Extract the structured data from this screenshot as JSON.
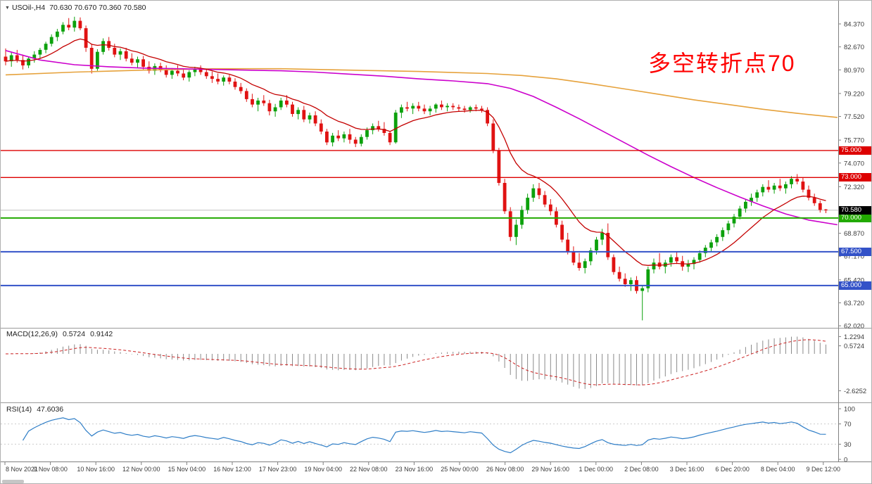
{
  "header": {
    "dropdown_icon": "▼",
    "title": "USOil-,H4",
    "ohlc": "70.630 70.670 70.360 70.580"
  },
  "annotation": {
    "text": "多空转折点70",
    "color": "#ff0000"
  },
  "panels": {
    "macd": {
      "label": "MACD(12,26,9)",
      "value_main": "0.5724",
      "value_signal": "0.9142",
      "axis": [
        "1.2294",
        "0.5724",
        "-2.6252"
      ]
    },
    "rsi": {
      "label": "RSI(14)",
      "value": "47.6036",
      "axis": [
        "100",
        "70",
        "30",
        "0"
      ]
    }
  },
  "chart_data": {
    "type": "candlestick",
    "symbol": "USOil-",
    "timeframe": "H4",
    "current": {
      "open": "70.630",
      "high": "70.670",
      "low": "70.360",
      "close": "70.580"
    },
    "colors": {
      "up": "#0ca10c",
      "down": "#e01212",
      "ma_fast": "#c40000",
      "ma_medium": "#cc00cc",
      "ma_slow": "#e6a23c",
      "rsi": "#2f7ec7",
      "macd_hist": "#8a8a8a",
      "macd_signal": "#cc2222"
    },
    "y_axis_labels": [
      "84.370",
      "82.670",
      "80.970",
      "79.220",
      "77.520",
      "75.770",
      "74.070",
      "72.320",
      "68.870",
      "67.170",
      "65.420",
      "63.720",
      "62.020"
    ],
    "levels": [
      {
        "price": 75.0,
        "label": "75.000",
        "color": "#dd0000",
        "width": 1.4
      },
      {
        "price": 73.0,
        "label": "73.000",
        "color": "#dd0000",
        "width": 1.4
      },
      {
        "price": 70.0,
        "label": "70.000",
        "color": "#22aa00",
        "width": 2
      },
      {
        "price": 67.5,
        "label": "67.500",
        "color": "#3352c8",
        "width": 2
      },
      {
        "price": 65.0,
        "label": "65.000",
        "color": "#3352c8",
        "width": 2
      }
    ],
    "current_price": {
      "price": 70.58,
      "label": "70.580",
      "badge_color": "#000000"
    },
    "ma_fast": {
      "period": 13
    },
    "ma_medium": {
      "points": [
        [
          0,
          82.4
        ],
        [
          6,
          81.7
        ],
        [
          12,
          81.35
        ],
        [
          18,
          81.2
        ],
        [
          24,
          81.1
        ],
        [
          30,
          81.05
        ],
        [
          36,
          81.0
        ],
        [
          42,
          80.95
        ],
        [
          48,
          80.9
        ],
        [
          54,
          80.8
        ],
        [
          60,
          80.65
        ],
        [
          66,
          80.5
        ],
        [
          72,
          80.3
        ],
        [
          78,
          80.15
        ],
        [
          84,
          79.95
        ],
        [
          88,
          79.6
        ],
        [
          92,
          79.0
        ],
        [
          96,
          78.2
        ],
        [
          100,
          77.35
        ],
        [
          104,
          76.45
        ],
        [
          108,
          75.55
        ],
        [
          112,
          74.65
        ],
        [
          116,
          73.8
        ],
        [
          120,
          73.0
        ],
        [
          124,
          72.25
        ],
        [
          128,
          71.55
        ],
        [
          132,
          70.9
        ],
        [
          136,
          70.3
        ],
        [
          140,
          69.85
        ],
        [
          145,
          69.5
        ]
      ]
    },
    "ma_slow": {
      "points": [
        [
          0,
          80.6
        ],
        [
          12,
          80.8
        ],
        [
          24,
          80.95
        ],
        [
          36,
          81.05
        ],
        [
          48,
          81.05
        ],
        [
          60,
          80.95
        ],
        [
          72,
          80.85
        ],
        [
          84,
          80.7
        ],
        [
          90,
          80.55
        ],
        [
          96,
          80.3
        ],
        [
          102,
          79.95
        ],
        [
          108,
          79.55
        ],
        [
          114,
          79.15
        ],
        [
          120,
          78.75
        ],
        [
          126,
          78.4
        ],
        [
          132,
          78.05
        ],
        [
          138,
          77.75
        ],
        [
          145,
          77.45
        ]
      ]
    },
    "macd": {
      "fast": 12,
      "slow": 26,
      "signal": 9
    },
    "rsi": {
      "period": 14,
      "levels": [
        70,
        30
      ]
    },
    "candles": [
      [
        81.95,
        82.55,
        81.3,
        81.6
      ],
      [
        81.6,
        82.25,
        81.2,
        82.05
      ],
      [
        82.05,
        82.45,
        81.5,
        81.7
      ],
      [
        81.7,
        82.1,
        81.0,
        81.3
      ],
      [
        81.3,
        81.95,
        81.1,
        81.8
      ],
      [
        81.8,
        82.35,
        81.5,
        82.1
      ],
      [
        82.1,
        82.6,
        81.8,
        82.45
      ],
      [
        82.45,
        83.05,
        82.2,
        82.9
      ],
      [
        82.9,
        83.6,
        82.7,
        83.4
      ],
      [
        83.4,
        84.0,
        83.1,
        83.8
      ],
      [
        83.8,
        84.5,
        83.6,
        84.3
      ],
      [
        84.3,
        84.8,
        83.9,
        84.1
      ],
      [
        84.1,
        84.9,
        83.8,
        84.6
      ],
      [
        84.6,
        84.85,
        83.9,
        84.05
      ],
      [
        84.05,
        84.25,
        82.3,
        82.6
      ],
      [
        82.6,
        82.9,
        80.7,
        81.05
      ],
      [
        81.05,
        82.5,
        80.9,
        82.3
      ],
      [
        82.3,
        83.3,
        82.1,
        83.1
      ],
      [
        83.1,
        83.4,
        82.4,
        82.6
      ],
      [
        82.6,
        82.9,
        81.9,
        82.1
      ],
      [
        82.1,
        82.55,
        81.7,
        82.35
      ],
      [
        82.35,
        82.6,
        81.6,
        81.8
      ],
      [
        81.8,
        82.2,
        81.3,
        81.5
      ],
      [
        81.5,
        81.95,
        81.1,
        81.75
      ],
      [
        81.75,
        82.0,
        81.0,
        81.2
      ],
      [
        81.2,
        81.6,
        80.7,
        80.9
      ],
      [
        80.9,
        81.45,
        80.6,
        81.25
      ],
      [
        81.25,
        81.5,
        80.8,
        81.0
      ],
      [
        81.0,
        81.3,
        80.4,
        80.6
      ],
      [
        80.6,
        81.1,
        80.3,
        80.9
      ],
      [
        80.9,
        81.3,
        80.5,
        80.7
      ],
      [
        80.7,
        81.0,
        80.2,
        80.4
      ],
      [
        80.4,
        80.95,
        80.1,
        80.8
      ],
      [
        80.8,
        81.2,
        80.5,
        81.0
      ],
      [
        81.0,
        81.3,
        80.6,
        80.8
      ],
      [
        80.8,
        81.0,
        80.3,
        80.5
      ],
      [
        80.5,
        80.85,
        80.0,
        80.3
      ],
      [
        80.3,
        80.7,
        79.9,
        80.1
      ],
      [
        80.1,
        80.55,
        79.8,
        80.4
      ],
      [
        80.4,
        80.6,
        79.9,
        80.1
      ],
      [
        80.1,
        80.35,
        79.5,
        79.7
      ],
      [
        79.7,
        80.0,
        79.2,
        79.4
      ],
      [
        79.4,
        79.6,
        78.6,
        78.8
      ],
      [
        78.8,
        79.2,
        78.2,
        78.4
      ],
      [
        78.4,
        78.9,
        77.9,
        78.7
      ],
      [
        78.7,
        79.1,
        78.3,
        78.5
      ],
      [
        78.5,
        78.75,
        77.6,
        77.9
      ],
      [
        77.9,
        78.45,
        77.5,
        78.2
      ],
      [
        78.2,
        78.9,
        78.0,
        78.7
      ],
      [
        78.7,
        79.1,
        78.2,
        78.4
      ],
      [
        78.4,
        78.6,
        77.5,
        77.7
      ],
      [
        77.7,
        78.2,
        77.3,
        78.0
      ],
      [
        78.0,
        78.3,
        77.1,
        77.3
      ],
      [
        77.3,
        77.8,
        77.0,
        77.6
      ],
      [
        77.6,
        77.9,
        76.8,
        77.0
      ],
      [
        77.0,
        77.3,
        76.2,
        76.4
      ],
      [
        76.4,
        76.6,
        75.4,
        75.6
      ],
      [
        75.6,
        76.3,
        75.3,
        76.1
      ],
      [
        76.1,
        76.5,
        75.7,
        75.9
      ],
      [
        75.9,
        76.4,
        75.6,
        76.2
      ],
      [
        76.2,
        76.6,
        75.5,
        75.8
      ],
      [
        75.8,
        76.0,
        75.25,
        75.5
      ],
      [
        75.5,
        76.2,
        75.3,
        76.0
      ],
      [
        76.0,
        76.7,
        75.8,
        76.5
      ],
      [
        76.5,
        77.0,
        76.2,
        76.8
      ],
      [
        76.8,
        77.2,
        76.4,
        76.6
      ],
      [
        76.6,
        77.1,
        76.1,
        76.3
      ],
      [
        76.3,
        76.45,
        75.4,
        75.6
      ],
      [
        75.6,
        78.0,
        75.5,
        77.8
      ],
      [
        77.8,
        78.4,
        77.4,
        78.2
      ],
      [
        78.2,
        78.6,
        77.9,
        78.1
      ],
      [
        78.1,
        78.5,
        77.7,
        78.3
      ],
      [
        78.3,
        78.6,
        77.9,
        78.1
      ],
      [
        78.1,
        78.4,
        77.7,
        77.9
      ],
      [
        77.9,
        78.3,
        77.6,
        78.1
      ],
      [
        78.1,
        78.5,
        77.8,
        78.4
      ],
      [
        78.4,
        78.7,
        78.0,
        78.2
      ],
      [
        78.2,
        78.5,
        77.9,
        78.3
      ],
      [
        78.3,
        78.5,
        78.0,
        78.2
      ],
      [
        78.2,
        78.4,
        77.9,
        78.1
      ],
      [
        78.1,
        78.3,
        77.8,
        78.0
      ],
      [
        78.0,
        78.3,
        77.8,
        78.2
      ],
      [
        78.2,
        78.4,
        77.9,
        78.1
      ],
      [
        78.1,
        78.3,
        77.8,
        78.0
      ],
      [
        78.0,
        78.2,
        76.8,
        77.0
      ],
      [
        77.0,
        77.3,
        74.8,
        75.0
      ],
      [
        75.0,
        75.2,
        72.4,
        72.6
      ],
      [
        72.6,
        72.9,
        70.3,
        70.5
      ],
      [
        70.5,
        70.8,
        68.3,
        68.6
      ],
      [
        68.6,
        69.9,
        68.0,
        69.5
      ],
      [
        69.5,
        70.9,
        69.2,
        70.6
      ],
      [
        70.6,
        71.8,
        70.3,
        71.5
      ],
      [
        71.5,
        72.5,
        71.2,
        72.2
      ],
      [
        72.2,
        72.6,
        71.4,
        71.7
      ],
      [
        71.7,
        72.0,
        70.8,
        71.0
      ],
      [
        71.0,
        71.4,
        70.2,
        70.5
      ],
      [
        70.5,
        70.8,
        69.3,
        69.5
      ],
      [
        69.5,
        69.8,
        68.2,
        68.4
      ],
      [
        68.4,
        68.9,
        67.3,
        67.5
      ],
      [
        67.5,
        67.9,
        66.5,
        66.7
      ],
      [
        66.7,
        67.4,
        66.1,
        66.3
      ],
      [
        66.3,
        67.0,
        65.9,
        66.8
      ],
      [
        66.8,
        67.8,
        66.5,
        67.6
      ],
      [
        67.6,
        68.6,
        67.3,
        68.4
      ],
      [
        68.4,
        69.2,
        68.0,
        68.9
      ],
      [
        68.9,
        69.6,
        66.9,
        67.1
      ],
      [
        67.1,
        67.3,
        65.8,
        66.0
      ],
      [
        66.0,
        66.4,
        65.3,
        65.5
      ],
      [
        65.5,
        65.9,
        64.9,
        65.1
      ],
      [
        65.1,
        65.6,
        64.6,
        65.4
      ],
      [
        65.4,
        65.7,
        64.4,
        64.6
      ],
      [
        64.6,
        65.0,
        62.42,
        64.8
      ],
      [
        64.8,
        66.4,
        64.5,
        66.2
      ],
      [
        66.2,
        67.0,
        65.9,
        66.7
      ],
      [
        66.7,
        67.4,
        66.2,
        66.4
      ],
      [
        66.4,
        66.9,
        65.9,
        66.7
      ],
      [
        66.7,
        67.3,
        66.4,
        67.1
      ],
      [
        67.1,
        67.5,
        66.6,
        66.8
      ],
      [
        66.8,
        67.2,
        66.1,
        66.4
      ],
      [
        66.4,
        66.9,
        66.0,
        66.6
      ],
      [
        66.6,
        67.1,
        66.2,
        66.9
      ],
      [
        66.9,
        67.6,
        66.7,
        67.4
      ],
      [
        67.4,
        68.0,
        67.1,
        67.8
      ],
      [
        67.8,
        68.4,
        67.5,
        68.2
      ],
      [
        68.2,
        68.8,
        67.9,
        68.6
      ],
      [
        68.6,
        69.3,
        68.3,
        69.1
      ],
      [
        69.1,
        69.8,
        68.8,
        69.6
      ],
      [
        69.6,
        70.3,
        69.3,
        70.1
      ],
      [
        70.1,
        70.9,
        69.9,
        70.7
      ],
      [
        70.7,
        71.4,
        70.4,
        71.2
      ],
      [
        71.2,
        71.8,
        70.9,
        71.5
      ],
      [
        71.5,
        72.1,
        71.2,
        71.9
      ],
      [
        71.9,
        72.5,
        71.6,
        72.3
      ],
      [
        72.3,
        72.8,
        71.9,
        72.1
      ],
      [
        72.1,
        72.6,
        71.8,
        72.4
      ],
      [
        72.4,
        72.9,
        72.0,
        72.2
      ],
      [
        72.2,
        72.7,
        71.8,
        72.5
      ],
      [
        72.5,
        73.1,
        72.2,
        72.9
      ],
      [
        72.9,
        73.25,
        72.5,
        72.7
      ],
      [
        72.7,
        73.0,
        71.9,
        72.1
      ],
      [
        72.1,
        72.4,
        71.3,
        71.5
      ],
      [
        71.5,
        71.8,
        70.9,
        71.1
      ],
      [
        71.1,
        71.3,
        70.4,
        70.6
      ],
      [
        70.63,
        70.67,
        70.36,
        70.58
      ]
    ],
    "time_labels": [
      "8 Nov 2021",
      "9 Nov 08:00",
      "10 Nov 16:00",
      "12 Nov 00:00",
      "15 Nov 04:00",
      "16 Nov 12:00",
      "17 Nov 23:00",
      "19 Nov 04:00",
      "22 Nov 08:00",
      "23 Nov 16:00",
      "25 Nov 00:00",
      "26 Nov 08:00",
      "29 Nov 16:00",
      "1 Dec 00:00",
      "2 Dec 08:00",
      "3 Dec 16:00",
      "6 Dec 20:00",
      "8 Dec 04:00",
      "9 Dec 12:00"
    ]
  }
}
